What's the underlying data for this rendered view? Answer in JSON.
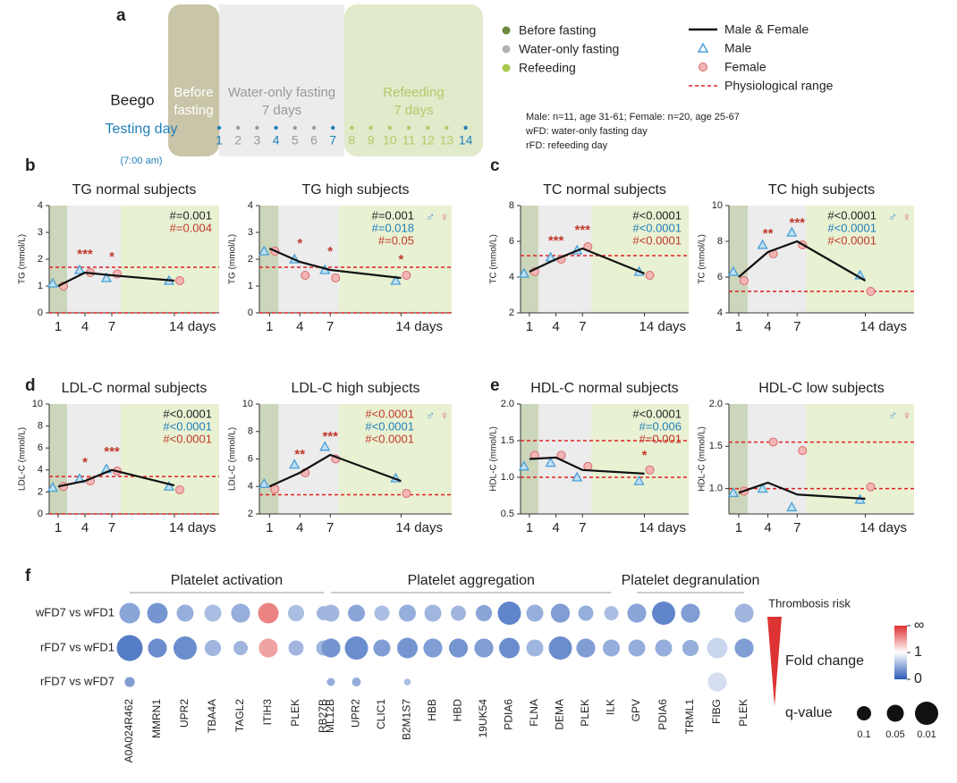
{
  "panel_labels": [
    "a",
    "b",
    "c",
    "d",
    "e",
    "f"
  ],
  "schedule": {
    "subject": "Beego",
    "testing_day": "Testing day",
    "time": "(7:00 am)",
    "phases": [
      {
        "label": [
          "Before",
          "fasting"
        ],
        "color": "#c9c5a8"
      },
      {
        "label": [
          "Water-only fasting",
          "7 days"
        ],
        "color": "#ececec",
        "days": [
          1,
          2,
          3,
          4,
          5,
          6,
          7
        ],
        "day_color": "#9a9a9a"
      },
      {
        "label": [
          "Refeeding",
          "7 days"
        ],
        "color": "#e1eacb",
        "days": [
          8,
          9,
          10,
          11,
          12,
          13,
          14
        ],
        "day_color": "#b5c96a"
      }
    ],
    "highlight_days": [
      1,
      4,
      7,
      14
    ],
    "highlight_color": "#1f7fb8"
  },
  "legend": {
    "phases": [
      {
        "name": "Before fasting",
        "color": "#6b8a3a"
      },
      {
        "name": "Water-only fasting",
        "color": "#b3b3b3"
      },
      {
        "name": "Refeeding",
        "color": "#a9c950"
      }
    ],
    "series": [
      {
        "name": "Male & Female",
        "color": "#111111"
      },
      {
        "name": "Male",
        "color": "#4a9fd4"
      },
      {
        "name": "Female",
        "color": "#d86a6a"
      },
      {
        "name": "Physiological range",
        "color": "#e02020"
      }
    ],
    "notes": [
      "Male: n=11, age 31-61; Female: n=20, age 25-67",
      "wFD: water-only fasting day",
      "rFD: refeeding day"
    ]
  },
  "chart_data": [
    {
      "type": "line",
      "title": "TG normal subjects",
      "ylabel": "TG (mmol/L)",
      "x": [
        1,
        4,
        7,
        14
      ],
      "xlim": [
        0,
        19
      ],
      "xticks": [
        1,
        4,
        7,
        {
          "value": 14,
          "label": "14 days"
        }
      ],
      "ylim": [
        0,
        4
      ],
      "yticks": [
        0,
        1,
        2,
        3,
        4
      ],
      "ref_lines": [
        0,
        1.7
      ],
      "series": [
        {
          "color": "#111111",
          "values": [
            1.0,
            1.5,
            1.4,
            1.2
          ]
        },
        {
          "color": "#4a9fd4",
          "values": [
            1.1,
            1.6,
            1.3,
            1.2
          ]
        },
        {
          "color": "#d86a6a",
          "values": [
            1.0,
            1.5,
            1.45,
            1.2
          ]
        }
      ],
      "stars": [
        null,
        "***",
        "*",
        null
      ],
      "p_values": [
        {
          "text": "#=0.001",
          "color": "#222222"
        },
        {
          "text": "#=0.004",
          "color": "#c0392b"
        }
      ]
    },
    {
      "type": "line",
      "title": "TG high subjects",
      "ylabel": "TG (mmol/L)",
      "x": [
        1,
        4,
        7,
        14
      ],
      "xlim": [
        0,
        19
      ],
      "xticks": [
        1,
        4,
        7,
        {
          "value": 14,
          "label": "14 days"
        }
      ],
      "ylim": [
        0,
        4
      ],
      "yticks": [
        0,
        1,
        2,
        3,
        4
      ],
      "ref_lines": [
        0,
        1.7
      ],
      "series": [
        {
          "color": "#111111",
          "values": [
            2.4,
            1.9,
            1.6,
            1.3
          ]
        },
        {
          "color": "#4a9fd4",
          "values": [
            2.3,
            2.0,
            1.6,
            1.2
          ]
        },
        {
          "color": "#d86a6a",
          "values": [
            2.3,
            1.4,
            1.3,
            1.4
          ]
        }
      ],
      "stars": [
        null,
        "*",
        "*",
        "*"
      ],
      "p_values": [
        {
          "text": "#=0.001",
          "color": "#222222"
        },
        {
          "text": "#=0.018",
          "color": "#1f7fb8"
        },
        {
          "text": "#=0.05",
          "color": "#c0392b"
        }
      ],
      "sex_symbols": [
        "♂",
        "♀"
      ]
    },
    {
      "type": "line",
      "title": "TC normal subjects",
      "ylabel": "TC (mmol/L)",
      "x": [
        1,
        4,
        7,
        14
      ],
      "xlim": [
        0,
        19
      ],
      "xticks": [
        1,
        4,
        7,
        {
          "value": 14,
          "label": "14 days"
        }
      ],
      "ylim": [
        2,
        8
      ],
      "yticks": [
        2,
        4,
        6,
        8
      ],
      "ref_lines": [
        5.2
      ],
      "series": [
        {
          "color": "#111111",
          "values": [
            4.3,
            5.0,
            5.6,
            4.2
          ]
        },
        {
          "color": "#4a9fd4",
          "values": [
            4.2,
            5.1,
            5.5,
            4.3
          ]
        },
        {
          "color": "#d86a6a",
          "values": [
            4.3,
            5.0,
            5.7,
            4.1
          ]
        }
      ],
      "stars": [
        null,
        "***",
        "***",
        null
      ],
      "p_values": [
        {
          "text": "#<0.0001",
          "color": "#222222"
        },
        {
          "text": "#<0.0001",
          "color": "#1f7fb8"
        },
        {
          "text": "#<0.0001",
          "color": "#c0392b"
        }
      ]
    },
    {
      "type": "line",
      "title": "TC high subjects",
      "ylabel": "TC (mmol/L)",
      "x": [
        1,
        4,
        7,
        14
      ],
      "xlim": [
        0,
        19
      ],
      "xticks": [
        1,
        4,
        7,
        {
          "value": 14,
          "label": "14 days"
        }
      ],
      "ylim": [
        4,
        10
      ],
      "yticks": [
        4,
        6,
        8,
        10
      ],
      "ref_lines": [
        5.2
      ],
      "series": [
        {
          "color": "#111111",
          "values": [
            6.0,
            7.4,
            8.0,
            5.8
          ]
        },
        {
          "color": "#4a9fd4",
          "values": [
            6.3,
            7.8,
            8.5,
            6.1
          ]
        },
        {
          "color": "#d86a6a",
          "values": [
            5.8,
            7.3,
            7.8,
            5.2
          ]
        }
      ],
      "stars": [
        null,
        "**",
        "***",
        null
      ],
      "p_values": [
        {
          "text": "#<0.0001",
          "color": "#222222"
        },
        {
          "text": "#<0.0001",
          "color": "#1f7fb8"
        },
        {
          "text": "#<0.0001",
          "color": "#c0392b"
        }
      ],
      "sex_symbols": [
        "♂",
        "♀"
      ]
    },
    {
      "type": "line",
      "title": "LDL-C normal subjects",
      "ylabel": "LDL-C (mmol/L)",
      "x": [
        1,
        4,
        7,
        14
      ],
      "xlim": [
        0,
        19
      ],
      "xticks": [
        1,
        4,
        7,
        {
          "value": 14,
          "label": "14 days"
        }
      ],
      "ylim": [
        0,
        10
      ],
      "yticks": [
        0,
        2,
        4,
        6,
        8,
        10
      ],
      "ref_lines": [
        0,
        3.4
      ],
      "series": [
        {
          "color": "#111111",
          "values": [
            2.5,
            3.0,
            4.0,
            2.6
          ]
        },
        {
          "color": "#4a9fd4",
          "values": [
            2.4,
            3.2,
            4.1,
            2.5
          ]
        },
        {
          "color": "#d86a6a",
          "values": [
            2.5,
            3.0,
            3.9,
            2.2
          ]
        }
      ],
      "stars": [
        null,
        "*",
        "***",
        null
      ],
      "p_values": [
        {
          "text": "#<0.0001",
          "color": "#222222"
        },
        {
          "text": "#<0.0001",
          "color": "#1f7fb8"
        },
        {
          "text": "#<0.0001",
          "color": "#c0392b"
        }
      ]
    },
    {
      "type": "line",
      "title": "LDL-C high subjects",
      "ylabel": "LDL-C (mmol/L)",
      "x": [
        1,
        4,
        7,
        14
      ],
      "xlim": [
        0,
        19
      ],
      "xticks": [
        1,
        4,
        7,
        {
          "value": 14,
          "label": "14 days"
        }
      ],
      "ylim": [
        2,
        10
      ],
      "yticks": [
        2,
        4,
        6,
        8,
        10
      ],
      "ref_lines": [
        3.4
      ],
      "series": [
        {
          "color": "#111111",
          "values": [
            4.0,
            5.0,
            6.3,
            4.4
          ]
        },
        {
          "color": "#4a9fd4",
          "values": [
            4.2,
            5.6,
            6.9,
            4.6
          ]
        },
        {
          "color": "#d86a6a",
          "values": [
            3.8,
            5.0,
            6.0,
            3.5
          ]
        }
      ],
      "stars": [
        null,
        "**",
        "***",
        null
      ],
      "p_values": [
        {
          "text": "#<0.0001",
          "color": "#c0392b"
        },
        {
          "text": "#<0.0001",
          "color": "#1f7fb8"
        },
        {
          "text": "#<0.0001",
          "color": "#c0392b"
        }
      ],
      "sex_symbols": [
        "♂",
        "♀"
      ]
    },
    {
      "type": "line",
      "title": "HDL-C normal subjects",
      "ylabel": "HDL-C (mmol/L)",
      "x": [
        1,
        4,
        7,
        14
      ],
      "xlim": [
        0,
        19
      ],
      "xticks": [
        1,
        4,
        7,
        {
          "value": 14,
          "label": "14 days"
        }
      ],
      "ylim": [
        0.5,
        2.0
      ],
      "yticks": [
        0.5,
        {
          "value": 1,
          "label": "1.0"
        },
        1.5,
        {
          "value": 2,
          "label": "2.0"
        }
      ],
      "ref_lines": [
        1.0,
        1.5
      ],
      "series": [
        {
          "color": "#111111",
          "values": [
            1.25,
            1.27,
            1.1,
            1.05
          ]
        },
        {
          "color": "#4a9fd4",
          "values": [
            1.15,
            1.2,
            1.0,
            0.95
          ]
        },
        {
          "color": "#d86a6a",
          "values": [
            1.3,
            1.3,
            1.15,
            1.1
          ]
        }
      ],
      "stars": [
        null,
        null,
        null,
        "*"
      ],
      "p_values": [
        {
          "text": "#<0.0001",
          "color": "#222222"
        },
        {
          "text": "#=0.006",
          "color": "#1f7fb8"
        },
        {
          "text": "#=0.001",
          "color": "#c0392b"
        }
      ]
    },
    {
      "type": "line",
      "title": "HDL-C low subjects",
      "ylabel": "HDL-C (mmol/L)",
      "x": [
        1,
        4,
        7,
        14
      ],
      "xlim": [
        0,
        19
      ],
      "xticks": [
        1,
        4,
        7,
        {
          "value": 14,
          "label": "14 days"
        }
      ],
      "ylim": [
        0.7,
        2.0
      ],
      "yticks": [
        {
          "value": 1,
          "label": "1.0"
        },
        1.5,
        {
          "value": 2,
          "label": "2.0"
        }
      ],
      "ref_lines": [
        1.0,
        1.55
      ],
      "series": [
        {
          "color": "#111111",
          "values": [
            0.95,
            1.07,
            0.93,
            0.88
          ]
        },
        {
          "color": "#4a9fd4",
          "values": [
            0.95,
            1.0,
            0.78,
            0.87
          ]
        },
        {
          "color": "#d86a6a",
          "values": [
            0.97,
            1.55,
            1.45,
            1.02
          ]
        }
      ],
      "p_values": [],
      "sex_symbols": [
        "♂",
        "♀"
      ]
    },
    {
      "type": "bubble",
      "annotation": "Thrombosis risk",
      "color_label": "Fold change",
      "size_label": "q-value",
      "rows": [
        "wFD7 vs wFD1",
        "rFD7 vs wFD1",
        "rFD7 vs wFD7"
      ],
      "groups": [
        {
          "name": "Platelet activation",
          "columns": [
            "A0A024R462",
            "MMRN1",
            "UPR2",
            "TBA4A",
            "TAGL2",
            "ITIH3",
            "PLEK",
            "RB27B"
          ]
        },
        {
          "name": "Platelet aggregation",
          "columns": [
            "ML12B",
            "UPR2",
            "CLIC1",
            "B2M1S7",
            "HBB",
            "HBD",
            "19UK54",
            "PDIA6",
            "FLNA",
            "DEMA",
            "PLEK",
            "ILK"
          ]
        },
        {
          "name": "Platelet degranulation",
          "columns": [
            "GPV",
            "PDIA6",
            "TRML1",
            "FIBG",
            "PLEK"
          ]
        }
      ],
      "fold_change": [
        [
          0.45,
          0.35,
          0.5,
          0.6,
          0.5,
          1.6,
          0.6,
          0.55,
          0.55,
          0.45,
          0.6,
          0.5,
          0.55,
          0.55,
          0.45,
          0.25,
          0.5,
          0.4,
          0.5,
          0.6,
          0.45,
          0.25,
          0.4,
          null,
          0.55
        ],
        [
          0.2,
          0.3,
          0.3,
          0.55,
          0.55,
          1.45,
          0.55,
          0.55,
          0.35,
          0.3,
          0.4,
          0.35,
          0.4,
          0.35,
          0.4,
          0.3,
          0.55,
          0.3,
          0.4,
          0.5,
          0.5,
          0.5,
          0.5,
          0.75,
          0.4
        ],
        [
          0.4,
          null,
          null,
          null,
          null,
          null,
          null,
          null,
          0.5,
          0.5,
          null,
          0.6,
          null,
          null,
          null,
          null,
          null,
          null,
          null,
          null,
          null,
          null,
          null,
          0.8,
          null
        ]
      ],
      "q_values": [
        [
          0.02,
          0.02,
          0.05,
          0.05,
          0.03,
          0.02,
          0.06,
          0.1,
          0.05,
          0.05,
          0.08,
          0.05,
          0.05,
          0.08,
          0.06,
          0.01,
          0.05,
          0.03,
          0.08,
          0.1,
          0.03,
          0.01,
          0.03,
          null,
          0.03
        ],
        [
          0.005,
          0.03,
          0.01,
          0.06,
          0.1,
          0.03,
          0.08,
          0.08,
          0.03,
          0.01,
          0.05,
          0.02,
          0.03,
          0.03,
          0.03,
          0.02,
          0.05,
          0.01,
          0.03,
          0.05,
          0.05,
          0.05,
          0.06,
          0.02,
          0.03
        ],
        [
          0.3,
          null,
          null,
          null,
          null,
          null,
          null,
          null,
          0.5,
          0.4,
          null,
          0.7,
          null,
          null,
          null,
          null,
          null,
          null,
          null,
          null,
          null,
          null,
          null,
          0.03,
          null
        ]
      ],
      "clim": [
        0,
        2
      ],
      "color_ticks": [
        {
          "value": 2,
          "label": "∞"
        },
        1,
        0
      ],
      "size_ticks": [
        0.1,
        0.05,
        0.01
      ]
    }
  ]
}
